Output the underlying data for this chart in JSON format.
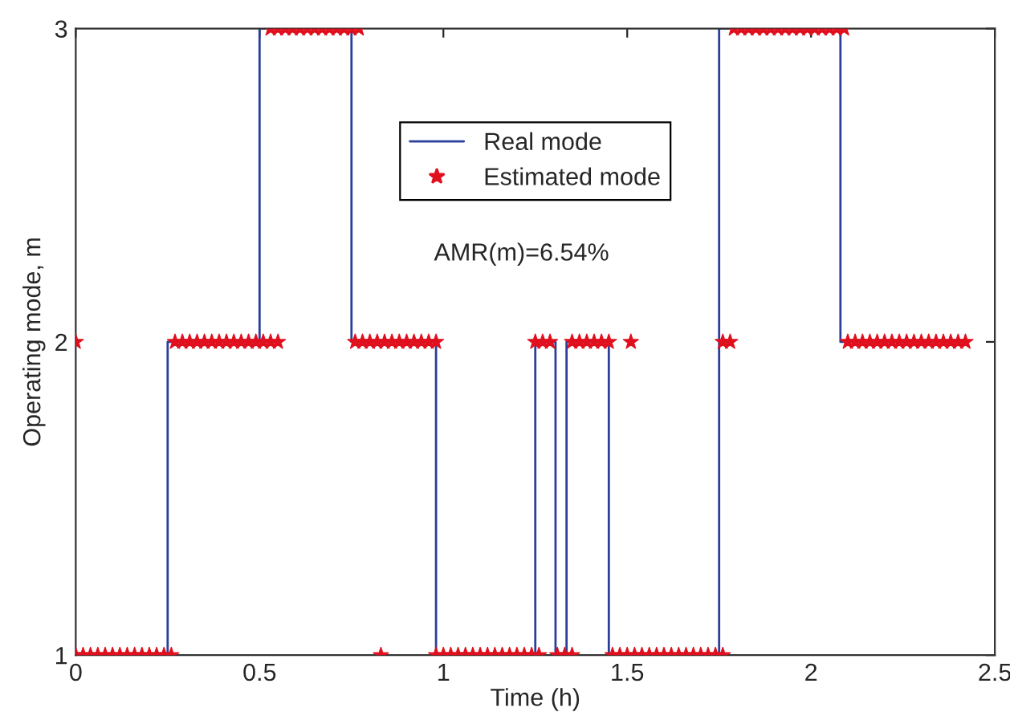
{
  "chart_data": {
    "type": "step",
    "xlabel": "Time (h)",
    "ylabel": "Operating mode, m",
    "xlim": [
      0,
      2.5
    ],
    "xticks": [
      0,
      0.5,
      1,
      1.5,
      2,
      2.5
    ],
    "ylim": [
      1,
      3
    ],
    "yticks": [
      1,
      2,
      3
    ],
    "grid": false,
    "legend": "top",
    "annotations": [
      "AMR(m)=6.54%"
    ],
    "series": [
      {
        "name": "Real mode",
        "color": "#2b3f9a",
        "marker": "none",
        "line_style": "solid",
        "x": [
          0,
          0.25,
          0.5,
          0.75,
          0.98,
          1.25,
          1.305,
          1.335,
          1.45,
          1.75,
          2.08,
          2.42
        ],
        "values": [
          1,
          2,
          3,
          2,
          1,
          2,
          1,
          2,
          1,
          3,
          2,
          2
        ]
      },
      {
        "name": "Estimated mode",
        "type": "scatter",
        "color": "#e0101e",
        "marker": "star",
        "x": [
          0,
          0,
          0.02,
          0.04,
          0.06,
          0.08,
          0.1,
          0.12,
          0.14,
          0.16,
          0.18,
          0.2,
          0.22,
          0.24,
          0.26,
          0.27,
          0.29,
          0.31,
          0.33,
          0.35,
          0.37,
          0.39,
          0.41,
          0.43,
          0.45,
          0.47,
          0.49,
          0.51,
          0.53,
          0.55,
          0.53,
          0.55,
          0.57,
          0.59,
          0.61,
          0.63,
          0.65,
          0.67,
          0.69,
          0.71,
          0.73,
          0.75,
          0.77,
          0.76,
          0.78,
          0.8,
          0.82,
          0.84,
          0.86,
          0.88,
          0.9,
          0.92,
          0.94,
          0.96,
          0.98,
          0.83,
          0.98,
          1.0,
          1.02,
          1.04,
          1.06,
          1.08,
          1.1,
          1.12,
          1.14,
          1.16,
          1.18,
          1.2,
          1.22,
          1.24,
          1.26,
          1.25,
          1.27,
          1.29,
          1.31,
          1.33,
          1.35,
          1.35,
          1.37,
          1.39,
          1.41,
          1.43,
          1.45,
          1.51,
          1.46,
          1.48,
          1.5,
          1.52,
          1.54,
          1.56,
          1.58,
          1.6,
          1.62,
          1.64,
          1.66,
          1.68,
          1.7,
          1.72,
          1.74,
          1.76,
          1.76,
          1.78,
          1.79,
          1.81,
          1.83,
          1.85,
          1.87,
          1.89,
          1.91,
          1.93,
          1.95,
          1.97,
          1.99,
          2.01,
          2.03,
          2.05,
          2.07,
          2.09,
          2.1,
          2.12,
          2.14,
          2.16,
          2.18,
          2.2,
          2.22,
          2.24,
          2.26,
          2.28,
          2.3,
          2.32,
          2.34,
          2.36,
          2.38,
          2.4,
          2.42
        ],
        "values": [
          2,
          1,
          1,
          1,
          1,
          1,
          1,
          1,
          1,
          1,
          1,
          1,
          1,
          1,
          1,
          2,
          2,
          2,
          2,
          2,
          2,
          2,
          2,
          2,
          2,
          2,
          2,
          2,
          2,
          2,
          3,
          3,
          3,
          3,
          3,
          3,
          3,
          3,
          3,
          3,
          3,
          3,
          3,
          2,
          2,
          2,
          2,
          2,
          2,
          2,
          2,
          2,
          2,
          2,
          2,
          1,
          1,
          1,
          1,
          1,
          1,
          1,
          1,
          1,
          1,
          1,
          1,
          1,
          1,
          1,
          1,
          2,
          2,
          2,
          1,
          1,
          1,
          2,
          2,
          2,
          2,
          2,
          2,
          2,
          1,
          1,
          1,
          1,
          1,
          1,
          1,
          1,
          1,
          1,
          1,
          1,
          1,
          1,
          1,
          1,
          2,
          2,
          3,
          3,
          3,
          3,
          3,
          3,
          3,
          3,
          3,
          3,
          3,
          3,
          3,
          3,
          3,
          3,
          2,
          2,
          2,
          2,
          2,
          2,
          2,
          2,
          2,
          2,
          2,
          2,
          2,
          2,
          2,
          2,
          2
        ]
      }
    ]
  }
}
